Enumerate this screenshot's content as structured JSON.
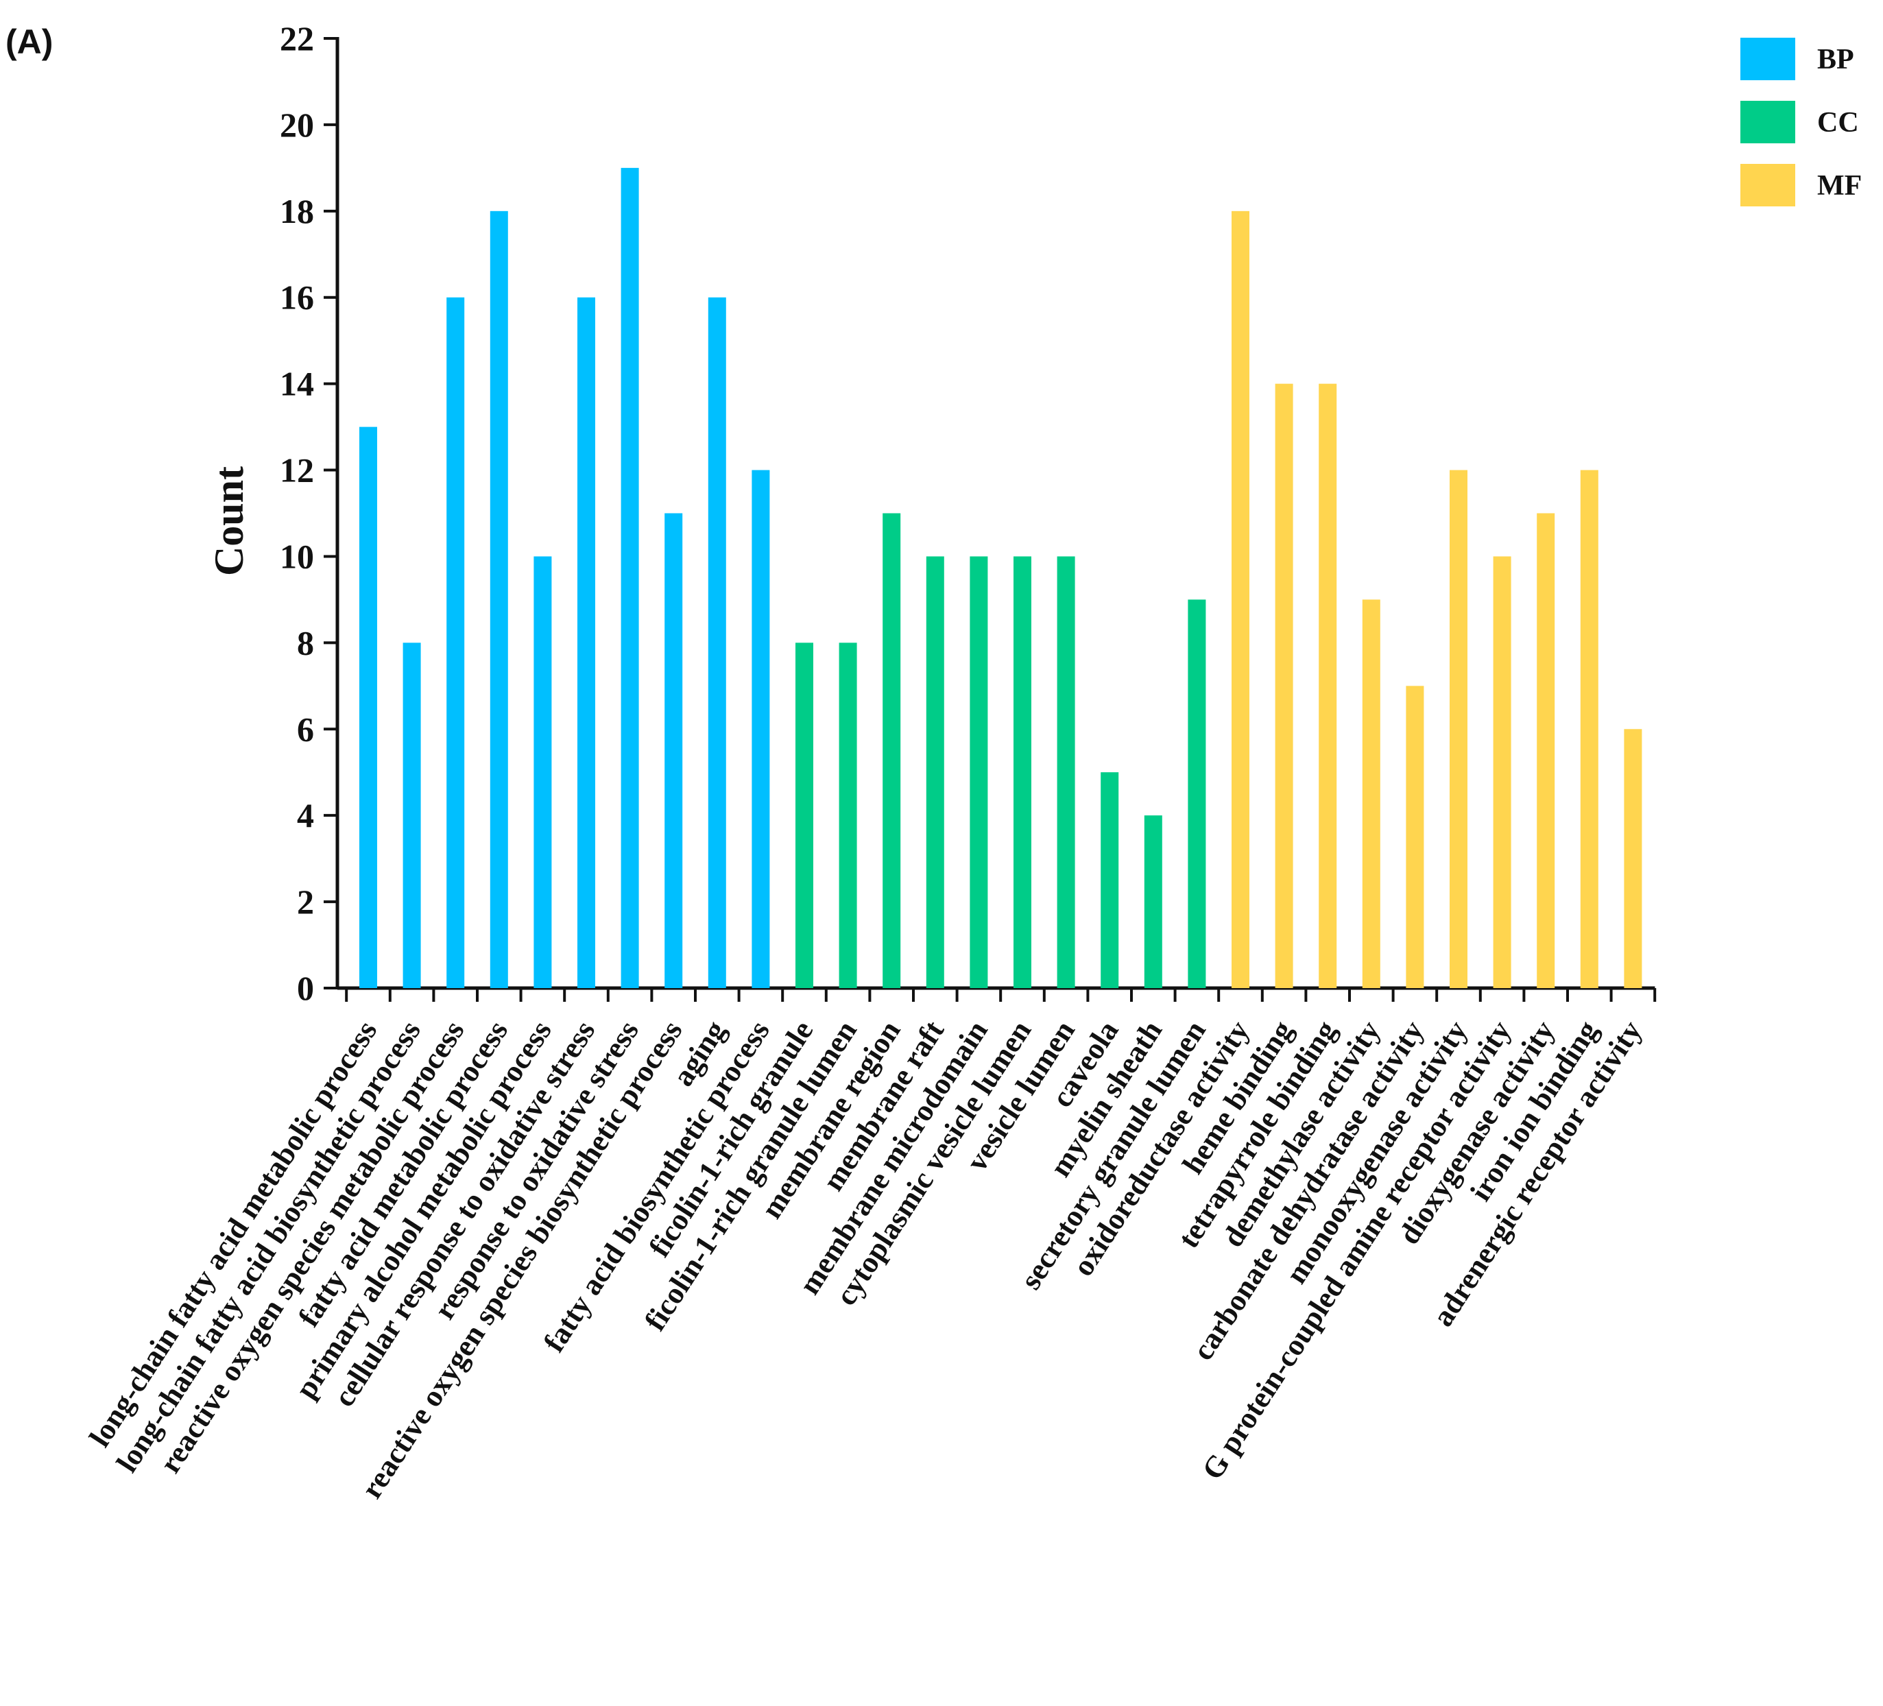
{
  "panel_label": "(A)",
  "chart_data": {
    "type": "bar",
    "title": "",
    "xlabel": "",
    "ylabel": "Count",
    "ylim": [
      0,
      22
    ],
    "yticks": [
      0,
      2,
      4,
      6,
      8,
      10,
      12,
      14,
      16,
      18,
      20,
      22
    ],
    "grid": false,
    "legend_position": "top-right",
    "groups": [
      {
        "name": "BP",
        "color": "#00BFFF"
      },
      {
        "name": "CC",
        "color": "#00CC88"
      },
      {
        "name": "MF",
        "color": "#FFD54F"
      }
    ],
    "categories": [
      {
        "label": "long-chain fatty acid metabolic process",
        "value": 13,
        "group": "BP"
      },
      {
        "label": "long-chain fatty acid biosynthetic process",
        "value": 8,
        "group": "BP"
      },
      {
        "label": "reactive oxygen species metabolic process",
        "value": 16,
        "group": "BP"
      },
      {
        "label": "fatty acid metabolic process",
        "value": 18,
        "group": "BP"
      },
      {
        "label": "primary alcohol metabolic process",
        "value": 10,
        "group": "BP"
      },
      {
        "label": "cellular response to oxidative stress",
        "value": 16,
        "group": "BP"
      },
      {
        "label": "response to oxidative stress",
        "value": 19,
        "group": "BP"
      },
      {
        "label": "reactive oxygen species biosynthetic process",
        "value": 11,
        "group": "BP"
      },
      {
        "label": "aging",
        "value": 16,
        "group": "BP"
      },
      {
        "label": "fatty acid biosynthetic process",
        "value": 12,
        "group": "BP"
      },
      {
        "label": "ficolin-1-rich granule",
        "value": 8,
        "group": "CC"
      },
      {
        "label": "ficolin-1-rich granule lumen",
        "value": 8,
        "group": "CC"
      },
      {
        "label": "membrane region",
        "value": 11,
        "group": "CC"
      },
      {
        "label": "membrane raft",
        "value": 10,
        "group": "CC"
      },
      {
        "label": "membrane microdomain",
        "value": 10,
        "group": "CC"
      },
      {
        "label": "cytoplasmic vesicle lumen",
        "value": 10,
        "group": "CC"
      },
      {
        "label": "vesicle lumen",
        "value": 10,
        "group": "CC"
      },
      {
        "label": "caveola",
        "value": 5,
        "group": "CC"
      },
      {
        "label": "myelin sheath",
        "value": 4,
        "group": "CC"
      },
      {
        "label": "secretory granule lumen",
        "value": 9,
        "group": "CC"
      },
      {
        "label": "oxidoreductase activity",
        "value": 18,
        "group": "MF"
      },
      {
        "label": "heme binding",
        "value": 14,
        "group": "MF"
      },
      {
        "label": "tetrapyrrole binding",
        "value": 14,
        "group": "MF"
      },
      {
        "label": "demethylase activity",
        "value": 9,
        "group": "MF"
      },
      {
        "label": "carbonate dehydratase activity",
        "value": 7,
        "group": "MF"
      },
      {
        "label": "monooxygenase activity",
        "value": 12,
        "group": "MF"
      },
      {
        "label": "G protein-coupled amine receptor activity",
        "value": 10,
        "group": "MF"
      },
      {
        "label": "dioxygenase activity",
        "value": 11,
        "group": "MF"
      },
      {
        "label": "iron ion binding",
        "value": 12,
        "group": "MF"
      },
      {
        "label": "adrenergic receptor activity",
        "value": 6,
        "group": "MF"
      }
    ]
  }
}
